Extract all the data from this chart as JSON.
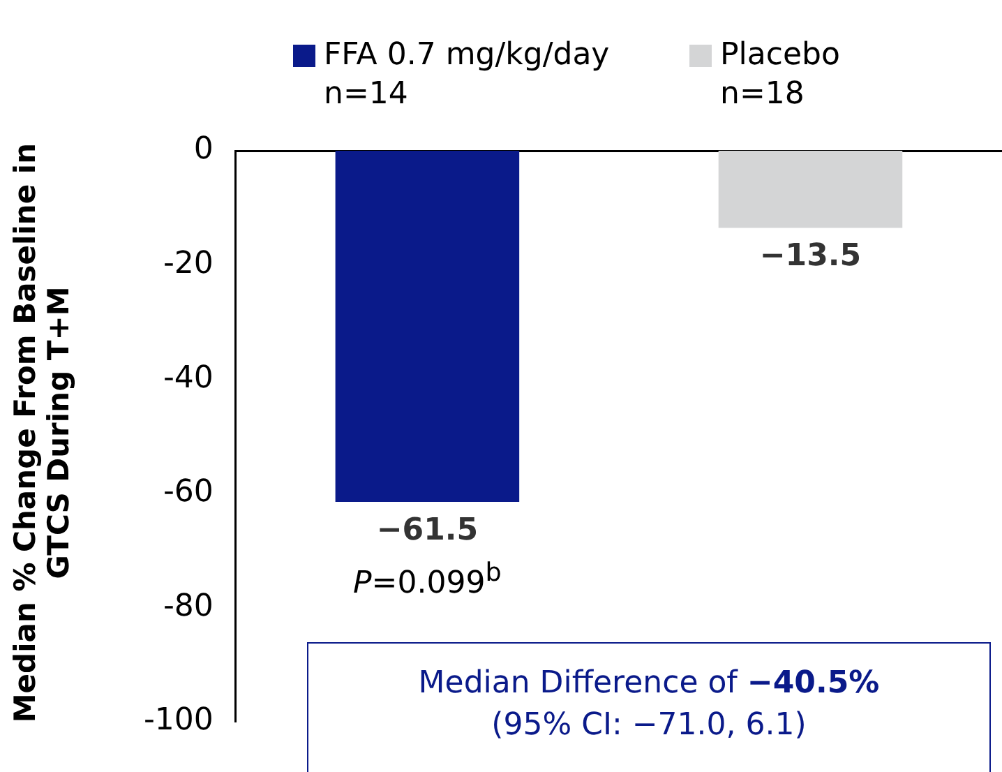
{
  "chart_data": {
    "type": "bar",
    "ylabel": "Median % Change From Baseline in GTCS During T+M",
    "categories": [
      null
    ],
    "series": [
      {
        "name": "FFA 0.7 mg/kg/day n=14",
        "color": "#0a1a8a",
        "values": [
          -61.5
        ],
        "value_labels": [
          "−61.5"
        ]
      },
      {
        "name": "Placebo n=18",
        "color": "#d4d5d6",
        "values": [
          -13.5
        ],
        "value_labels": [
          "−13.5"
        ]
      }
    ],
    "ylim": [
      -100,
      0
    ],
    "yticks": [
      0,
      -20,
      -40,
      -60,
      -80,
      -100
    ],
    "grid": false,
    "legend": "top",
    "annotations": [
      "P=0.099$^{b}$",
      "Median Difference of −40.5% (95% CI: −71.0, 6.1)"
    ]
  }
}
